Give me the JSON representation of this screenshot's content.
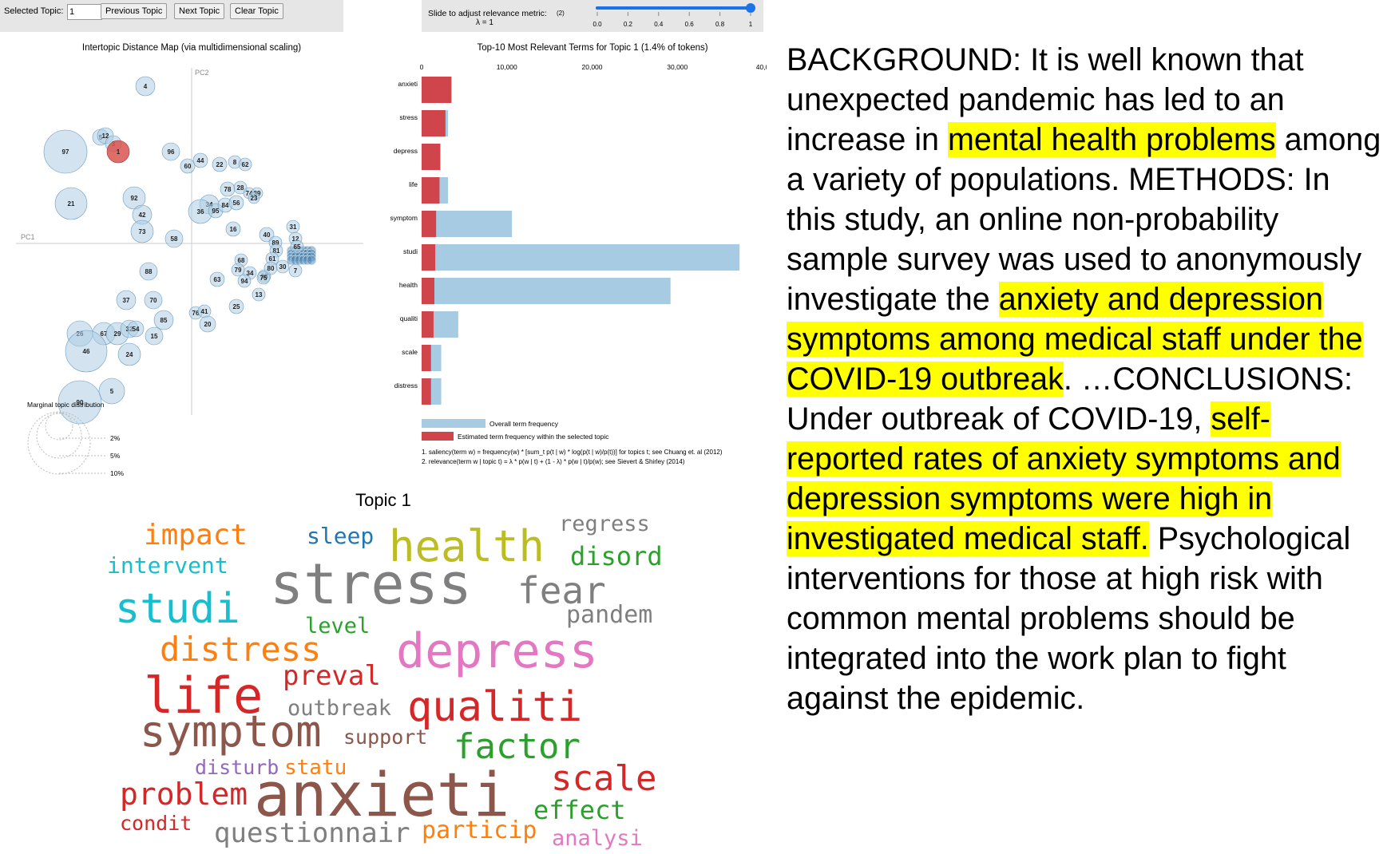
{
  "controls": {
    "selected_topic_label": "Selected Topic:",
    "selected_topic_value": "1",
    "previous_button": "Previous Topic",
    "next_button": "Next Topic",
    "clear_button": "Clear Topic",
    "slider_label": "Slide to adjust relevance metric:",
    "slider_note": "(2)",
    "lambda_label": "λ = 1",
    "lambda_value": 1,
    "slider_ticks": [
      "0.0",
      "0.2",
      "0.4",
      "0.6",
      "0.8",
      "1"
    ]
  },
  "intertopic_map": {
    "title": "Intertopic Distance Map (via multidimensional scaling)",
    "pc1_label": "PC1",
    "pc2_label": "PC2",
    "selected_topic": "1",
    "highlight_color": "#d9534f",
    "bubble_color": "#aecde3",
    "marginal_title": "Marginal topic distribution",
    "marginal_legend": [
      "2%",
      "5%",
      "10%"
    ],
    "topics": [
      {
        "label": "4"
      },
      {
        "label": "97"
      },
      {
        "label": "5"
      },
      {
        "label": "12"
      },
      {
        "label": "3"
      },
      {
        "label": "1"
      },
      {
        "label": "96"
      },
      {
        "label": "60"
      },
      {
        "label": "44"
      },
      {
        "label": "22"
      },
      {
        "label": "8"
      },
      {
        "label": "62"
      },
      {
        "label": "21"
      },
      {
        "label": "92"
      },
      {
        "label": "42"
      },
      {
        "label": "73"
      },
      {
        "label": "58"
      },
      {
        "label": "78"
      },
      {
        "label": "28"
      },
      {
        "label": "74"
      },
      {
        "label": "39"
      },
      {
        "label": "23"
      },
      {
        "label": "34"
      },
      {
        "label": "36"
      },
      {
        "label": "95"
      },
      {
        "label": "84"
      },
      {
        "label": "56"
      },
      {
        "label": "16"
      },
      {
        "label": "31"
      },
      {
        "label": "40"
      },
      {
        "label": "12"
      },
      {
        "label": "89"
      },
      {
        "label": "65"
      },
      {
        "label": "81"
      },
      {
        "label": "61"
      },
      {
        "label": "68"
      },
      {
        "label": "79"
      },
      {
        "label": "34"
      },
      {
        "label": "38"
      },
      {
        "label": "80"
      },
      {
        "label": "30"
      },
      {
        "label": "7"
      },
      {
        "label": "94"
      },
      {
        "label": "75"
      },
      {
        "label": "63"
      },
      {
        "label": "13"
      },
      {
        "label": "88"
      },
      {
        "label": "37"
      },
      {
        "label": "70"
      },
      {
        "label": "25"
      },
      {
        "label": "76"
      },
      {
        "label": "41"
      },
      {
        "label": "20"
      },
      {
        "label": "85"
      },
      {
        "label": "26"
      },
      {
        "label": "67"
      },
      {
        "label": "29"
      },
      {
        "label": "32"
      },
      {
        "label": "54"
      },
      {
        "label": "15"
      },
      {
        "label": "46"
      },
      {
        "label": "24"
      },
      {
        "label": "5"
      },
      {
        "label": "90"
      }
    ]
  },
  "term_chart": {
    "title": "Top-10 Most Relevant Terms for Topic 1 (1.4% of tokens)",
    "x_ticks": [
      "0",
      "10,000",
      "20,000",
      "30,000",
      "40,0"
    ],
    "overall_color": "#a6cbe3",
    "topic_color": "#d0454c",
    "legend_overall": "Overall term frequency",
    "legend_topic": "Estimated term frequency within the selected topic",
    "footnote_1": "1. saliency(term w) = frequency(w) * [sum_t p(t | w) * log(p(t | w)/p(t))] for topics t; see Chuang et. al (2012)",
    "footnote_2": "2. relevance(term w | topic t) = λ * p(w | t) + (1 - λ) * p(w | t)/p(w); see Sievert & Shirley (2014)"
  },
  "chart_data": {
    "type": "bar",
    "title": "Top-10 Most Relevant Terms for Topic 1 (1.4% of tokens)",
    "orientation": "horizontal",
    "xlim": [
      0,
      40000
    ],
    "categories": [
      "anxieti",
      "stress",
      "depress",
      "life",
      "symptom",
      "studi",
      "health",
      "qualiti",
      "scale",
      "distress"
    ],
    "series": [
      {
        "name": "Overall term frequency",
        "values": [
          3500,
          3100,
          2200,
          3100,
          10600,
          37300,
          29200,
          4300,
          2300,
          2300
        ]
      },
      {
        "name": "Estimated term frequency within the selected topic",
        "values": [
          3500,
          2800,
          2200,
          2100,
          1700,
          1600,
          1500,
          1400,
          1100,
          1100
        ]
      }
    ]
  },
  "wordcloud": {
    "title": "Topic 1",
    "words": [
      {
        "text": "impact",
        "color": "#ff7f0e"
      },
      {
        "text": "sleep",
        "color": "#1f77b4"
      },
      {
        "text": "health",
        "color": "#bcbd22"
      },
      {
        "text": "regress",
        "color": "#7f7f7f"
      },
      {
        "text": "disord",
        "color": "#2ca02c"
      },
      {
        "text": "intervent",
        "color": "#17becf"
      },
      {
        "text": "stress",
        "color": "#7f7f7f"
      },
      {
        "text": "fear",
        "color": "#7f7f7f"
      },
      {
        "text": "studi",
        "color": "#17becf"
      },
      {
        "text": "pandem",
        "color": "#7f7f7f"
      },
      {
        "text": "level",
        "color": "#2ca02c"
      },
      {
        "text": "distress",
        "color": "#ff7f0e"
      },
      {
        "text": "depress",
        "color": "#e377c2"
      },
      {
        "text": "life",
        "color": "#d62728"
      },
      {
        "text": "preval",
        "color": "#d62728"
      },
      {
        "text": "outbreak",
        "color": "#7f7f7f"
      },
      {
        "text": "qualiti",
        "color": "#d62728"
      },
      {
        "text": "symptom",
        "color": "#8c564b"
      },
      {
        "text": "support",
        "color": "#8c564b"
      },
      {
        "text": "factor",
        "color": "#2ca02c"
      },
      {
        "text": "disturb",
        "color": "#9467bd"
      },
      {
        "text": "statu",
        "color": "#ff7f0e"
      },
      {
        "text": "scale",
        "color": "#d62728"
      },
      {
        "text": "problem",
        "color": "#d62728"
      },
      {
        "text": "anxieti",
        "color": "#8c564b"
      },
      {
        "text": "effect",
        "color": "#2ca02c"
      },
      {
        "text": "condit",
        "color": "#d62728"
      },
      {
        "text": "questionnair",
        "color": "#7f7f7f"
      },
      {
        "text": "particip",
        "color": "#ff7f0e"
      },
      {
        "text": "analysi",
        "color": "#e377c2"
      }
    ]
  },
  "abstract": {
    "highlight_color": "#ffff00",
    "s1": "BACKGROUND: It is well known that unexpected pandemic has led to an increase in ",
    "h1": "mental health problems",
    "s2": " among a variety of populations. METHODS: In this study, an online non-probability sample survey was used to anonymously investigate the ",
    "h2": "anxiety and depression symptoms among medical staff under the COVID-19 outbreak",
    "s3": ". …CONCLUSIONS: Under outbreak of COVID-19, ",
    "h3": "self-reported rates of anxiety symptoms and depression symptoms were high in investigated medical staff.",
    "s4": " Psychological interventions for those at high risk with common mental problems should be integrated into the work plan to fight against the epidemic."
  }
}
